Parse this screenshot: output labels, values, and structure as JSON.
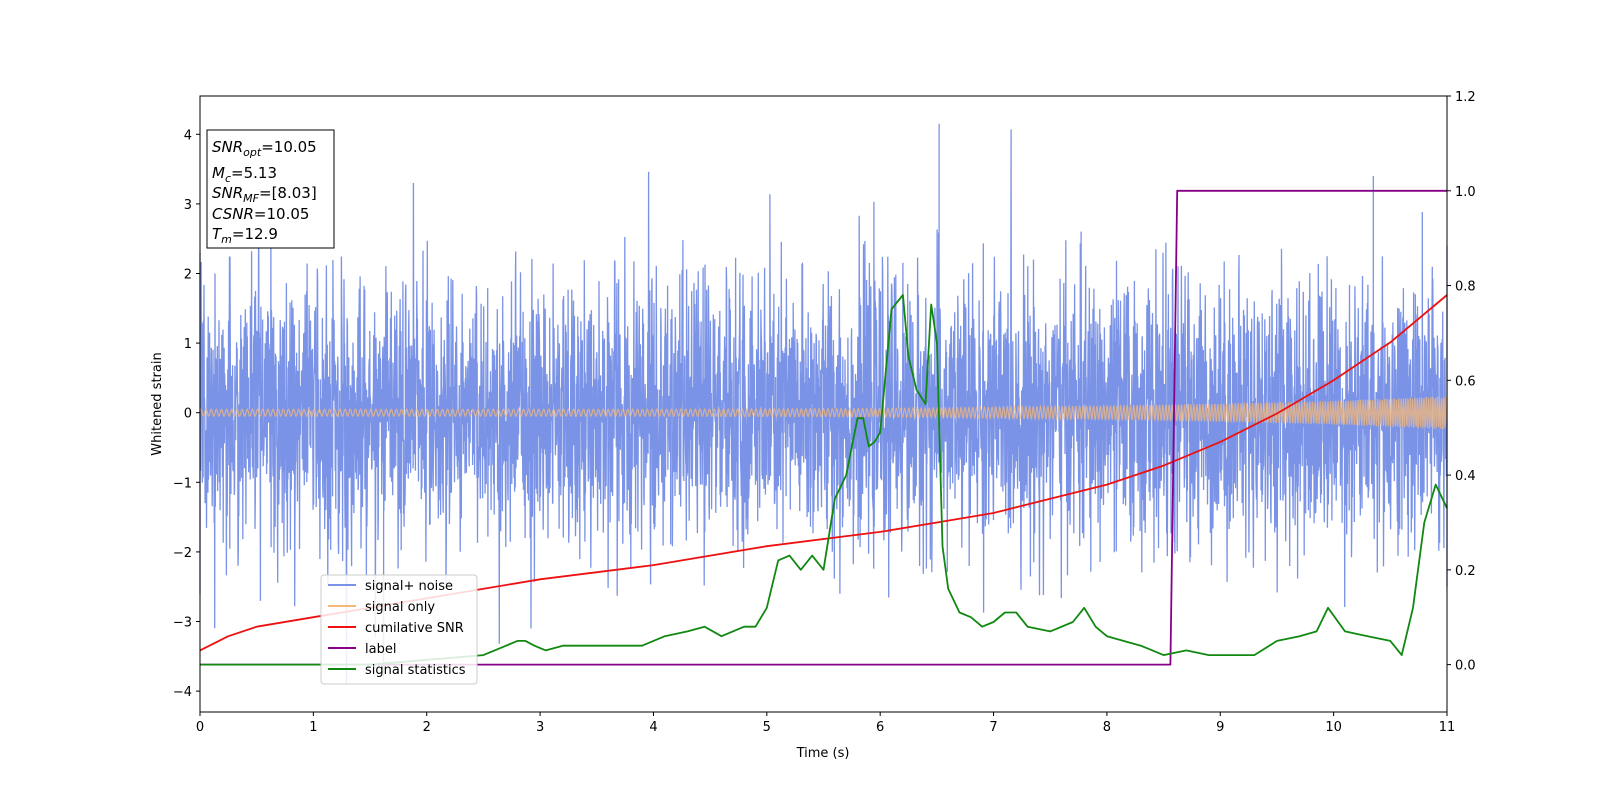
{
  "chart_data": {
    "type": "line",
    "xlabel": "Time (s)",
    "ylabel": "Whitened strain",
    "xlim": [
      0,
      11
    ],
    "ylim": [
      -4.3,
      4.55
    ],
    "y2lim": [
      -0.1,
      1.2
    ],
    "xticks": [
      "0",
      "1",
      "2",
      "3",
      "4",
      "5",
      "6",
      "7",
      "8",
      "9",
      "10",
      "11"
    ],
    "yticks": [
      "−4",
      "−3",
      "−2",
      "−1",
      "0",
      "1",
      "2",
      "3",
      "4"
    ],
    "y2ticks": [
      "0.0",
      "0.2",
      "0.4",
      "0.6",
      "0.8",
      "1.0",
      "1.2"
    ],
    "grid": false,
    "legend_position": "lower-left",
    "legend": [
      "signal+ noise",
      "signal only",
      "cumilative SNR",
      "label",
      "signal statistics"
    ],
    "colors": {
      "signal_noise": "#7a93e6",
      "signal_only": "#f5b87a",
      "cumulative_snr": "#ee1111",
      "label": "#880088",
      "signal_statistics": "#118811"
    },
    "annotation": {
      "snr_opt": {
        "name": "SNR",
        "sub": "opt",
        "value": "=10.05"
      },
      "mc": {
        "name": "M",
        "sub": "c",
        "value": "=5.13"
      },
      "snr_mf": {
        "name": "SNR",
        "sub": "MF",
        "value": "=[8.03]"
      },
      "csnr": {
        "name": "CSNR",
        "sub": "",
        "value": "=10.05"
      },
      "tm": {
        "name": "T",
        "sub": "m",
        "value": "=12.9"
      }
    },
    "series": [
      {
        "name": "signal+ noise",
        "axis": "left",
        "description_points": {
          "envelope_upper": [
            [
              0,
              2.3
            ],
            [
              6.52,
              4.15
            ],
            [
              10.35,
              3.4
            ],
            [
              11,
              2.4
            ]
          ],
          "envelope_lower": [
            [
              0,
              -2.6
            ],
            [
              1.62,
              -3.85
            ],
            [
              11,
              -2.5
            ]
          ]
        }
      },
      {
        "name": "signal only",
        "axis": "left",
        "amplitude_envelope": [
          [
            0,
            0.05
          ],
          [
            2,
            0.05
          ],
          [
            4,
            0.05
          ],
          [
            6,
            0.06
          ],
          [
            7,
            0.08
          ],
          [
            8,
            0.1
          ],
          [
            9,
            0.13
          ],
          [
            10,
            0.17
          ],
          [
            11,
            0.24
          ]
        ]
      },
      {
        "name": "cumilative SNR",
        "axis": "right",
        "x": [
          0,
          0.25,
          0.5,
          1,
          1.5,
          2,
          3,
          4,
          5,
          6,
          6.5,
          7,
          7.5,
          8,
          8.5,
          9,
          9.5,
          10,
          10.5,
          11
        ],
        "y": [
          0.03,
          0.06,
          0.08,
          0.1,
          0.12,
          0.14,
          0.18,
          0.21,
          0.25,
          0.28,
          0.3,
          0.32,
          0.35,
          0.38,
          0.42,
          0.47,
          0.53,
          0.6,
          0.68,
          0.78
        ]
      },
      {
        "name": "label",
        "axis": "right",
        "x": [
          0,
          8.56,
          8.62,
          11
        ],
        "y": [
          0,
          0,
          1,
          1
        ]
      },
      {
        "name": "signal statistics",
        "axis": "right",
        "x": [
          0,
          1.5,
          2.5,
          2.7,
          2.8,
          2.87,
          2.95,
          3.05,
          3.2,
          3.5,
          3.9,
          4.1,
          4.3,
          4.45,
          4.6,
          4.8,
          4.9,
          5.0,
          5.1,
          5.2,
          5.3,
          5.4,
          5.5,
          5.6,
          5.7,
          5.8,
          5.85,
          5.9,
          5.95,
          6.0,
          6.1,
          6.2,
          6.25,
          6.32,
          6.4,
          6.45,
          6.5,
          6.55,
          6.6,
          6.7,
          6.8,
          6.9,
          7.0,
          7.1,
          7.2,
          7.3,
          7.5,
          7.7,
          7.8,
          7.9,
          8.0,
          8.3,
          8.5,
          8.7,
          8.9,
          9.1,
          9.3,
          9.5,
          9.7,
          9.85,
          9.95,
          10.1,
          10.3,
          10.5,
          10.6,
          10.7,
          10.8,
          10.9,
          11.0
        ],
        "y": [
          0.0,
          0.0,
          0.02,
          0.04,
          0.05,
          0.05,
          0.04,
          0.03,
          0.04,
          0.04,
          0.04,
          0.06,
          0.07,
          0.08,
          0.06,
          0.08,
          0.08,
          0.12,
          0.22,
          0.23,
          0.2,
          0.23,
          0.2,
          0.35,
          0.4,
          0.52,
          0.52,
          0.46,
          0.47,
          0.49,
          0.75,
          0.78,
          0.65,
          0.58,
          0.55,
          0.76,
          0.68,
          0.25,
          0.16,
          0.11,
          0.1,
          0.08,
          0.09,
          0.11,
          0.11,
          0.08,
          0.07,
          0.09,
          0.12,
          0.08,
          0.06,
          0.04,
          0.02,
          0.03,
          0.02,
          0.02,
          0.02,
          0.05,
          0.06,
          0.07,
          0.12,
          0.07,
          0.06,
          0.05,
          0.02,
          0.12,
          0.3,
          0.38,
          0.33
        ]
      }
    ]
  }
}
